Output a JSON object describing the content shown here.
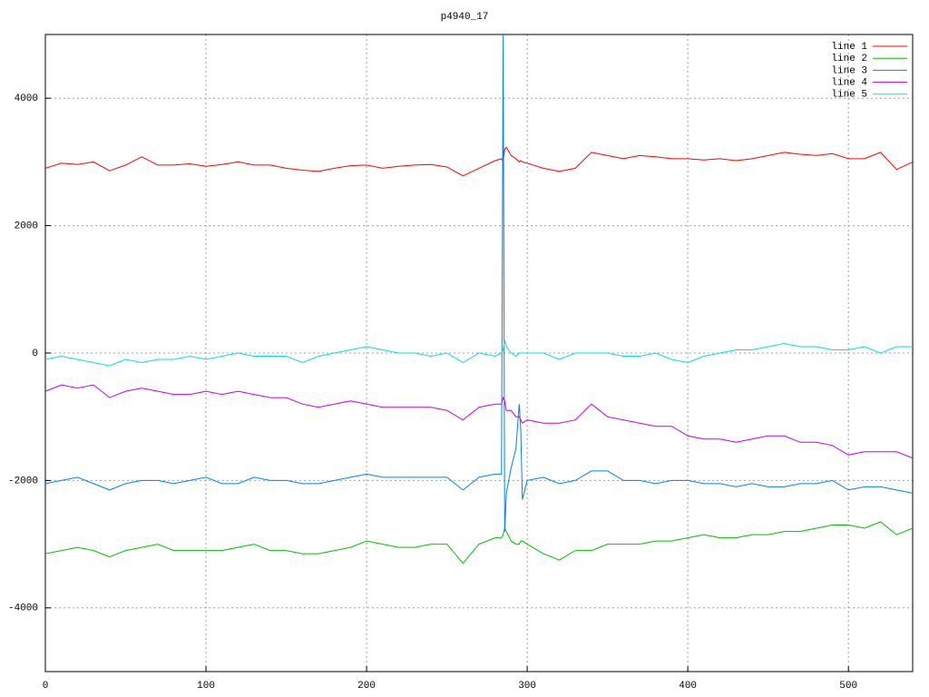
{
  "chart_data": {
    "type": "line",
    "title": "p4940_17",
    "x": [
      0,
      10,
      20,
      30,
      40,
      50,
      60,
      70,
      80,
      90,
      100,
      110,
      120,
      130,
      140,
      150,
      160,
      170,
      180,
      190,
      200,
      210,
      220,
      230,
      240,
      250,
      260,
      270,
      280,
      284,
      285,
      286,
      287,
      290,
      293,
      295,
      296,
      297,
      300,
      310,
      320,
      330,
      340,
      350,
      360,
      370,
      380,
      390,
      400,
      410,
      420,
      430,
      440,
      450,
      460,
      470,
      480,
      490,
      500,
      510,
      520,
      530,
      540
    ],
    "xlim": [
      0,
      540
    ],
    "xticks": [
      0,
      100,
      200,
      300,
      400,
      500
    ],
    "ylim": [
      -5000,
      5000
    ],
    "yticks": [
      -4000,
      -2000,
      0,
      2000,
      4000
    ],
    "grid": true,
    "legend_position": "top-right",
    "series": [
      {
        "name": "line 1",
        "color": "#ff0000",
        "values": [
          2900,
          2980,
          2960,
          3000,
          2860,
          2950,
          3080,
          2950,
          2950,
          2970,
          2930,
          2960,
          3000,
          2950,
          2950,
          2900,
          2870,
          2850,
          2900,
          2940,
          2950,
          2900,
          2930,
          2950,
          2960,
          2920,
          2780,
          2900,
          3020,
          3050,
          3000,
          3200,
          3230,
          3100,
          3050,
          3000,
          3020,
          3000,
          2980,
          2900,
          2850,
          2900,
          3150,
          3100,
          3050,
          3100,
          3080,
          3050,
          3050,
          3030,
          3050,
          3020,
          3050,
          3100,
          3150,
          3120,
          3100,
          3130,
          3050,
          3050,
          3150,
          2880,
          3000
        ]
      },
      {
        "name": "line 2",
        "color": "#00c000",
        "values": [
          -3150,
          -3100,
          -3050,
          -3100,
          -3200,
          -3100,
          -3050,
          -3000,
          -3100,
          -3100,
          -3100,
          -3100,
          -3050,
          -3000,
          -3100,
          -3100,
          -3150,
          -3150,
          -3100,
          -3050,
          -2950,
          -3000,
          -3050,
          -3050,
          -3000,
          -3000,
          -3300,
          -3000,
          -2900,
          -2900,
          -2850,
          -2750,
          -2800,
          -2950,
          -3000,
          -3000,
          -2950,
          -2950,
          -3000,
          -3150,
          -3250,
          -3100,
          -3100,
          -3000,
          -3000,
          -3000,
          -2950,
          -2950,
          -2900,
          -2850,
          -2900,
          -2900,
          -2850,
          -2850,
          -2800,
          -2800,
          -2750,
          -2700,
          -2700,
          -2750,
          -2650,
          -2850,
          -2750
        ]
      },
      {
        "name": "line 3",
        "color": "#0080ff",
        "values": [
          -2050,
          -2000,
          -1950,
          -2050,
          -2150,
          -2050,
          -2000,
          -2000,
          -2050,
          -2000,
          -1950,
          -2050,
          -2050,
          -1950,
          -2000,
          -2000,
          -2050,
          -2050,
          -2000,
          -1950,
          -1900,
          -1950,
          -1950,
          -1950,
          -1950,
          -1950,
          -2150,
          -1950,
          -1900,
          -1900,
          5000,
          -2800,
          -2200,
          -1800,
          -1500,
          -800,
          -1200,
          -2300,
          -2000,
          -1950,
          -2050,
          -2000,
          -1850,
          -1850,
          -2000,
          -2000,
          -2050,
          -2000,
          -2000,
          -2050,
          -2050,
          -2100,
          -2050,
          -2100,
          -2100,
          -2050,
          -2050,
          -2000,
          -2150,
          -2100,
          -2100,
          -2150,
          -2200
        ]
      },
      {
        "name": "line 4",
        "color": "#c000ff",
        "values": [
          -600,
          -500,
          -550,
          -500,
          -700,
          -600,
          -550,
          -600,
          -650,
          -650,
          -600,
          -650,
          -600,
          -650,
          -700,
          -700,
          -800,
          -850,
          -800,
          -750,
          -800,
          -850,
          -850,
          -850,
          -850,
          -900,
          -1050,
          -850,
          -800,
          -800,
          -700,
          -750,
          -900,
          -900,
          -1000,
          -1000,
          -1050,
          -1100,
          -1050,
          -1100,
          -1100,
          -1050,
          -800,
          -1000,
          -1050,
          -1100,
          -1150,
          -1150,
          -1300,
          -1350,
          -1350,
          -1400,
          -1350,
          -1300,
          -1300,
          -1400,
          -1400,
          -1450,
          -1600,
          -1550,
          -1550,
          -1550,
          -1650
        ]
      },
      {
        "name": "line 5",
        "color": "#00e0e0",
        "values": [
          -100,
          -50,
          -100,
          -150,
          -200,
          -100,
          -150,
          -100,
          -100,
          -50,
          -100,
          -50,
          0,
          -50,
          -50,
          -50,
          -150,
          -50,
          0,
          50,
          100,
          50,
          0,
          0,
          -50,
          0,
          -150,
          0,
          -50,
          0,
          50,
          200,
          100,
          0,
          -50,
          0,
          0,
          0,
          0,
          0,
          -100,
          0,
          0,
          0,
          -50,
          -50,
          0,
          -100,
          -150,
          -50,
          0,
          50,
          50,
          100,
          150,
          100,
          100,
          50,
          50,
          100,
          0,
          100,
          100
        ]
      }
    ]
  }
}
